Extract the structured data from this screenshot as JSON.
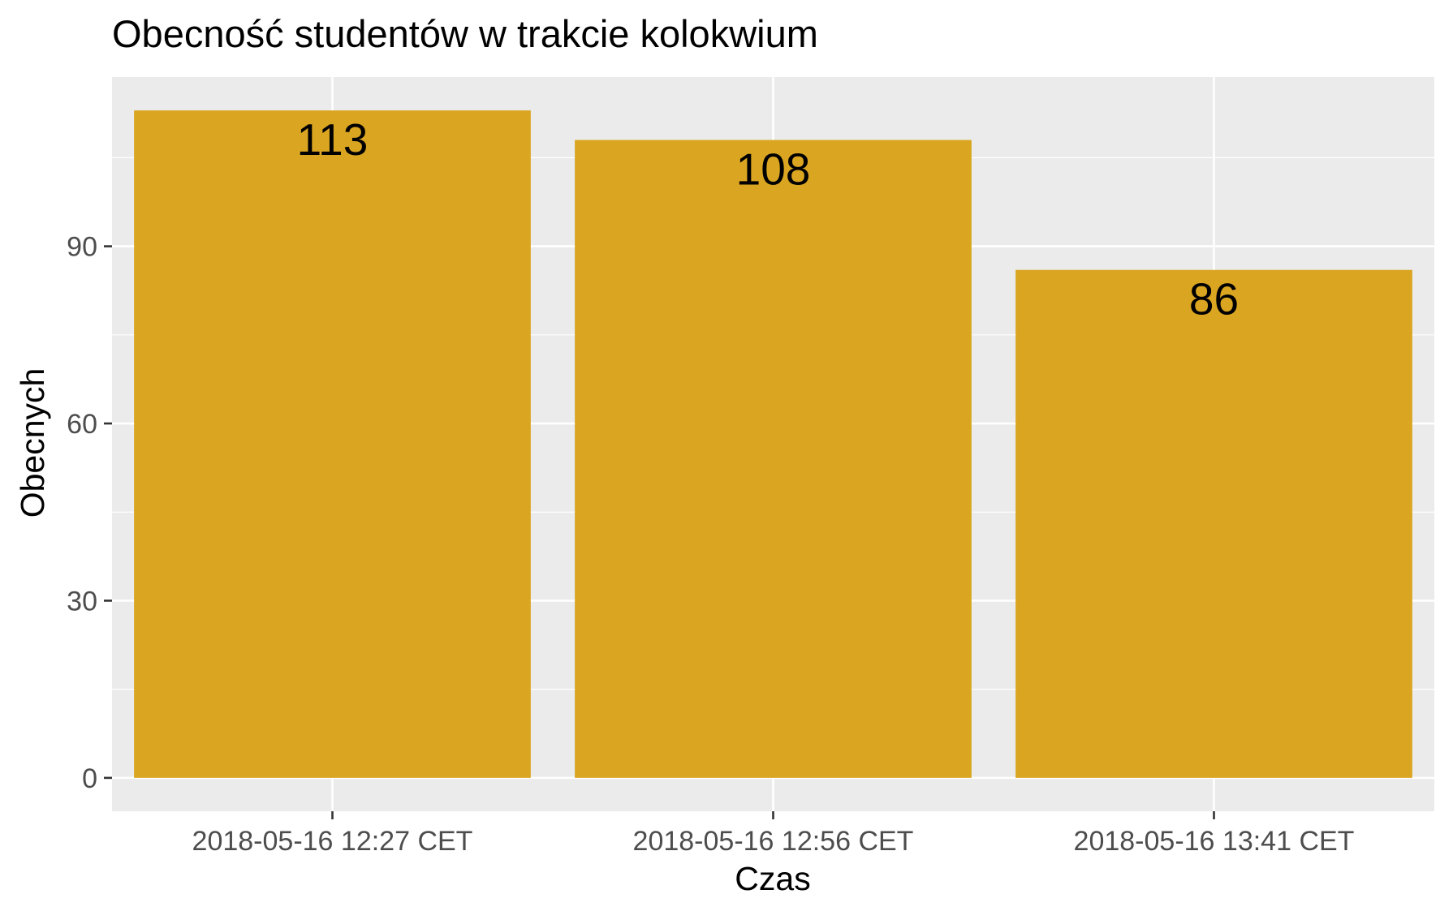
{
  "chart_data": {
    "type": "bar",
    "title": "Obecność studentów w trakcie kolokwium",
    "xlabel": "Czas",
    "ylabel": "Obecnych",
    "categories": [
      "2018-05-16 12:27 CET",
      "2018-05-16 12:56 CET",
      "2018-05-16 13:41 CET"
    ],
    "values": [
      113,
      108,
      86
    ],
    "data_labels": [
      "113",
      "108",
      "86"
    ],
    "yticks": [
      0,
      30,
      60,
      90
    ],
    "ytick_labels": [
      "0",
      "30",
      "60",
      "90"
    ],
    "ylim": [
      -5.65,
      118.65
    ],
    "grid": true,
    "legend": "none",
    "colors": {
      "bar": "#DAA520",
      "panel": "#EBEBEB",
      "grid": "#FFFFFF",
      "background": "#FFFFFF"
    }
  }
}
